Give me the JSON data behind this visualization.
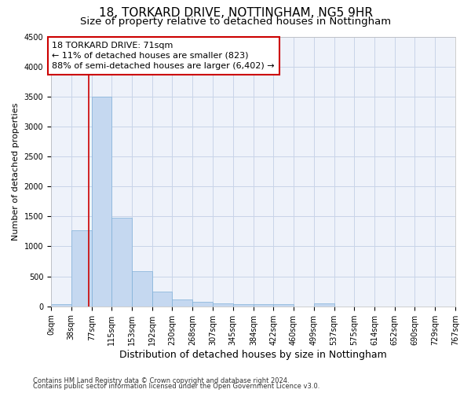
{
  "title1": "18, TORKARD DRIVE, NOTTINGHAM, NG5 9HR",
  "title2": "Size of property relative to detached houses in Nottingham",
  "xlabel": "Distribution of detached houses by size in Nottingham",
  "ylabel": "Number of detached properties",
  "footer1": "Contains HM Land Registry data © Crown copyright and database right 2024.",
  "footer2": "Contains public sector information licensed under the Open Government Licence v3.0.",
  "bin_edges": [
    0,
    38,
    77,
    115,
    153,
    192,
    230,
    268,
    307,
    345,
    384,
    422,
    460,
    499,
    537,
    575,
    614,
    652,
    690,
    729,
    767
  ],
  "bin_labels": [
    "0sqm",
    "38sqm",
    "77sqm",
    "115sqm",
    "153sqm",
    "192sqm",
    "230sqm",
    "268sqm",
    "307sqm",
    "345sqm",
    "384sqm",
    "422sqm",
    "460sqm",
    "499sqm",
    "537sqm",
    "575sqm",
    "614sqm",
    "652sqm",
    "690sqm",
    "729sqm",
    "767sqm"
  ],
  "bar_heights": [
    30,
    1270,
    3500,
    1480,
    580,
    240,
    115,
    80,
    50,
    40,
    40,
    40,
    0,
    50,
    0,
    0,
    0,
    0,
    0,
    0
  ],
  "bar_color": "#c5d8f0",
  "bar_edge_color": "#7fb0d8",
  "ylim": [
    0,
    4500
  ],
  "yticks": [
    0,
    500,
    1000,
    1500,
    2000,
    2500,
    3000,
    3500,
    4000,
    4500
  ],
  "property_sqm": 71,
  "vline_color": "#cc0000",
  "annot_line1": "18 TORKARD DRIVE: 71sqm",
  "annot_line2": "← 11% of detached houses are smaller (823)",
  "annot_line3": "88% of semi-detached houses are larger (6,402) →",
  "annotation_box_color": "#cc0000",
  "bg_color": "#eef2fa",
  "grid_color": "#c8d4e8",
  "title1_fontsize": 11,
  "title2_fontsize": 9.5,
  "xlabel_fontsize": 9,
  "ylabel_fontsize": 8,
  "tick_fontsize": 7,
  "annot_fontsize": 8,
  "footer_fontsize": 6
}
